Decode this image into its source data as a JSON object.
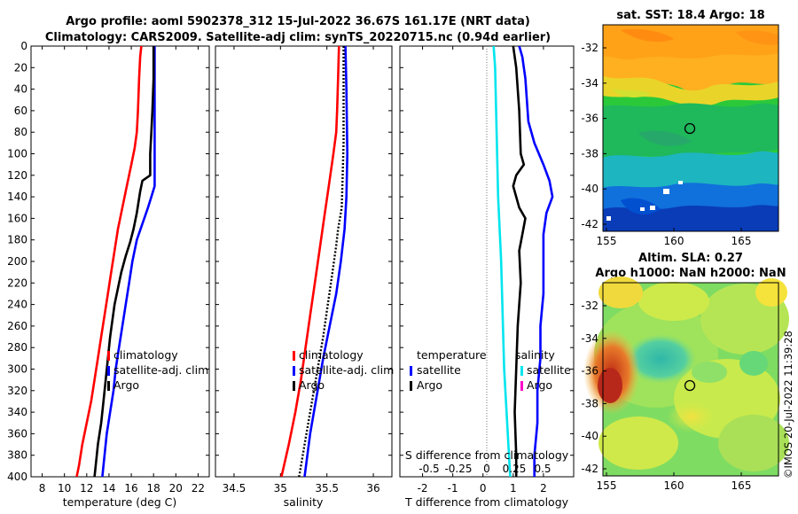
{
  "title": {
    "line1": "Argo profile: aoml 5902378_312 15-Jul-2022 36.67S 161.17E (NRT data)",
    "line2": "Climatology: CARS2009. Satellite-adj clim: synTS_20220715.nc (0.94d earlier)"
  },
  "colors": {
    "climatology": "#ff0000",
    "satellite": "#0000ff",
    "argo": "#000000",
    "t_diff": "#00e5ee",
    "s_marker": "#ff00cc",
    "zero_line": "#777777"
  },
  "chart_data": [
    {
      "id": "temperature",
      "type": "line",
      "xlabel": "temperature (deg C)",
      "ylabel": "",
      "xlim": [
        7,
        23
      ],
      "ylim": [
        400,
        0
      ],
      "xticks": [
        8,
        10,
        12,
        14,
        16,
        18,
        20,
        22
      ],
      "yticks": [
        0,
        20,
        40,
        60,
        80,
        100,
        120,
        140,
        160,
        180,
        200,
        220,
        240,
        260,
        280,
        300,
        320,
        340,
        360,
        380,
        400
      ],
      "legend": [
        "climatology",
        "satellite-adj. clim",
        "Argo"
      ],
      "legend_position": "lower-right",
      "series": [
        {
          "name": "climatology",
          "color": "#ff0000",
          "style": "solid",
          "points": [
            [
              16.9,
              0
            ],
            [
              16.8,
              10
            ],
            [
              16.7,
              30
            ],
            [
              16.6,
              60
            ],
            [
              16.5,
              80
            ],
            [
              16.3,
              95
            ],
            [
              16.0,
              110
            ],
            [
              15.6,
              130
            ],
            [
              15.2,
              150
            ],
            [
              14.8,
              170
            ],
            [
              14.5,
              190
            ],
            [
              14.2,
              210
            ],
            [
              13.9,
              230
            ],
            [
              13.6,
              250
            ],
            [
              13.3,
              270
            ],
            [
              13.0,
              290
            ],
            [
              12.7,
              310
            ],
            [
              12.4,
              330
            ],
            [
              12.0,
              350
            ],
            [
              11.6,
              370
            ],
            [
              11.3,
              390
            ],
            [
              11.1,
              400
            ]
          ]
        },
        {
          "name": "satellite-adj. clim",
          "color": "#0000ff",
          "style": "solid",
          "points": [
            [
              18.1,
              0
            ],
            [
              18.1,
              60
            ],
            [
              18.1,
              110
            ],
            [
              18.1,
              130
            ],
            [
              17.8,
              140
            ],
            [
              17.5,
              150
            ],
            [
              17.0,
              165
            ],
            [
              16.5,
              180
            ],
            [
              16.1,
              200
            ],
            [
              15.8,
              220
            ],
            [
              15.5,
              240
            ],
            [
              15.2,
              260
            ],
            [
              14.9,
              280
            ],
            [
              14.6,
              300
            ],
            [
              14.4,
              320
            ],
            [
              14.1,
              340
            ],
            [
              13.8,
              360
            ],
            [
              13.6,
              380
            ],
            [
              13.4,
              400
            ]
          ]
        },
        {
          "name": "Argo",
          "color": "#000000",
          "style": "solid",
          "points": [
            [
              18.0,
              0
            ],
            [
              18.0,
              30
            ],
            [
              17.9,
              60
            ],
            [
              17.8,
              80
            ],
            [
              17.7,
              100
            ],
            [
              17.7,
              120
            ],
            [
              17.0,
              125
            ],
            [
              16.8,
              135
            ],
            [
              16.5,
              155
            ],
            [
              16.2,
              170
            ],
            [
              15.9,
              182
            ],
            [
              15.5,
              195
            ],
            [
              15.1,
              210
            ],
            [
              14.8,
              225
            ],
            [
              14.5,
              240
            ],
            [
              14.3,
              255
            ],
            [
              14.1,
              270
            ],
            [
              13.9,
              290
            ],
            [
              13.7,
              310
            ],
            [
              13.5,
              330
            ],
            [
              13.3,
              350
            ],
            [
              13.0,
              370
            ],
            [
              12.8,
              390
            ],
            [
              12.7,
              400
            ]
          ]
        }
      ]
    },
    {
      "id": "salinity",
      "type": "line",
      "xlabel": "salinity",
      "xlim": [
        34.3,
        36.2
      ],
      "ylim": [
        400,
        0
      ],
      "xticks": [
        34.5,
        35,
        35.5,
        36
      ],
      "xtick_labels": [
        "34.5",
        "35",
        "35.5",
        "36"
      ],
      "legend": [
        "climatology",
        "satellite-adj. clim",
        "Argo"
      ],
      "legend_position": "lower-right",
      "series": [
        {
          "name": "climatology",
          "color": "#ff0000",
          "style": "solid",
          "points": [
            [
              35.63,
              0
            ],
            [
              35.62,
              30
            ],
            [
              35.61,
              60
            ],
            [
              35.6,
              80
            ],
            [
              35.57,
              100
            ],
            [
              35.52,
              130
            ],
            [
              35.47,
              160
            ],
            [
              35.42,
              190
            ],
            [
              35.37,
              220
            ],
            [
              35.32,
              250
            ],
            [
              35.27,
              280
            ],
            [
              35.22,
              310
            ],
            [
              35.16,
              340
            ],
            [
              35.09,
              370
            ],
            [
              35.01,
              400
            ]
          ]
        },
        {
          "name": "satellite-adj. clim",
          "color": "#0000ff",
          "style": "solid",
          "points": [
            [
              35.7,
              0
            ],
            [
              35.71,
              40
            ],
            [
              35.72,
              100
            ],
            [
              35.71,
              140
            ],
            [
              35.69,
              170
            ],
            [
              35.65,
              200
            ],
            [
              35.6,
              230
            ],
            [
              35.53,
              260
            ],
            [
              35.46,
              290
            ],
            [
              35.4,
              320
            ],
            [
              35.32,
              360
            ],
            [
              35.26,
              400
            ]
          ]
        },
        {
          "name": "Argo",
          "color": "#000000",
          "style": "dotted",
          "points": [
            [
              35.68,
              0
            ],
            [
              35.68,
              40
            ],
            [
              35.68,
              90
            ],
            [
              35.67,
              120
            ],
            [
              35.66,
              150
            ],
            [
              35.62,
              170
            ],
            [
              35.6,
              185
            ],
            [
              35.56,
              210
            ],
            [
              35.51,
              240
            ],
            [
              35.46,
              270
            ],
            [
              35.4,
              300
            ],
            [
              35.34,
              330
            ],
            [
              35.28,
              360
            ],
            [
              35.22,
              390
            ],
            [
              35.2,
              400
            ]
          ]
        }
      ]
    },
    {
      "id": "difference",
      "type": "line",
      "xlabel": "T difference from climatology",
      "xlim": [
        -2.75,
        3
      ],
      "ylim": [
        400,
        0
      ],
      "xticks": [
        -2,
        -1,
        0,
        1,
        2
      ],
      "xtick_labels": [
        "-2",
        "-1",
        "0",
        "1",
        "2"
      ],
      "s_xlabel": "S difference from climatology",
      "s_xtick_labels": [
        "-0.5",
        "-0.25",
        "0",
        "0.25",
        "0.5"
      ],
      "legend_temperature_title": "temperature",
      "legend_salinity_title": "salinity",
      "legend": [
        "satellite",
        "Argo"
      ],
      "series": [
        {
          "name": "T satellite",
          "color": "#0000ff",
          "style": "solid",
          "points": [
            [
              1.2,
              0
            ],
            [
              1.3,
              10
            ],
            [
              1.4,
              30
            ],
            [
              1.5,
              70
            ],
            [
              1.7,
              90
            ],
            [
              2.0,
              110
            ],
            [
              2.2,
              125
            ],
            [
              2.3,
              140
            ],
            [
              2.1,
              155
            ],
            [
              2.0,
              175
            ],
            [
              2.0,
              200
            ],
            [
              2.0,
              230
            ],
            [
              1.9,
              260
            ],
            [
              1.9,
              290
            ],
            [
              1.8,
              320
            ],
            [
              1.8,
              350
            ],
            [
              1.7,
              380
            ],
            [
              1.7,
              400
            ]
          ]
        },
        {
          "name": "T Argo",
          "color": "#000000",
          "style": "solid",
          "points": [
            [
              1.0,
              0
            ],
            [
              1.1,
              20
            ],
            [
              1.2,
              60
            ],
            [
              1.25,
              100
            ],
            [
              1.35,
              110
            ],
            [
              1.1,
              120
            ],
            [
              1.0,
              130
            ],
            [
              1.2,
              150
            ],
            [
              1.4,
              160
            ],
            [
              1.3,
              175
            ],
            [
              1.2,
              190
            ],
            [
              1.25,
              220
            ],
            [
              1.15,
              260
            ],
            [
              1.1,
              300
            ],
            [
              1.05,
              340
            ],
            [
              1.1,
              380
            ],
            [
              1.1,
              400
            ]
          ]
        },
        {
          "name": "S satellite",
          "color": "#00e5ee",
          "style": "solid",
          "points": [
            [
              0.35,
              0
            ],
            [
              0.4,
              20
            ],
            [
              0.45,
              80
            ],
            [
              0.5,
              140
            ],
            [
              0.6,
              200
            ],
            [
              0.65,
              250
            ],
            [
              0.7,
              300
            ],
            [
              0.8,
              350
            ],
            [
              0.9,
              400
            ]
          ]
        }
      ]
    },
    {
      "id": "sat_sst_map",
      "type": "heatmap",
      "title": "sat. SST: 18.4 Argo: 18",
      "xticks": [
        "155",
        "160",
        "165"
      ],
      "yticks": [
        "-32",
        "-34",
        "-36",
        "-38",
        "-40",
        "-42"
      ],
      "marker": "Argo position"
    },
    {
      "id": "altim_sla_map",
      "type": "heatmap",
      "title_line1": "Altim. SLA: 0.27",
      "title_line2": "Argo h1000: NaN h2000: NaN",
      "xticks": [
        "155",
        "160",
        "165"
      ],
      "yticks": [
        "-32",
        "-34",
        "-36",
        "-38",
        "-40",
        "-42"
      ],
      "marker": "Argo position"
    }
  ],
  "watermark": "©IMOS 20-Jul-2022 11:39:28"
}
